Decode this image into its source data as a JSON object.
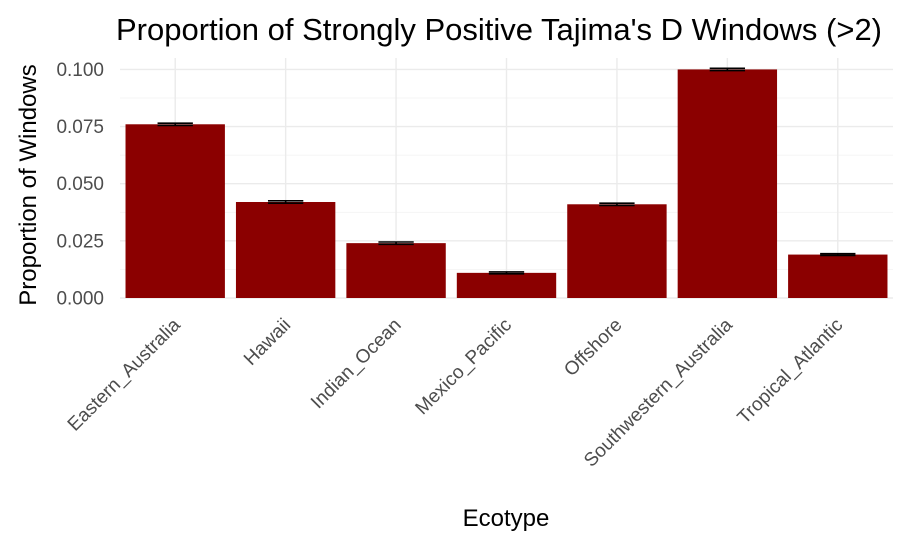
{
  "chart_data": {
    "type": "bar",
    "title": "Proportion of Strongly Positive Tajima's D Windows (>2)",
    "xlabel": "Ecotype",
    "ylabel": "Proportion of Windows",
    "categories": [
      "Eastern_Australia",
      "Hawaii",
      "Indian_Ocean",
      "Mexico_Pacific",
      "Offshore",
      "Southwestern_Australia",
      "Tropical_Atlantic"
    ],
    "values": [
      0.076,
      0.042,
      0.024,
      0.011,
      0.041,
      0.1,
      0.019
    ],
    "error": [
      0.0005,
      0.0005,
      0.0005,
      0.0004,
      0.0005,
      0.0005,
      0.0004
    ],
    "ylim": [
      0,
      0.105
    ],
    "yticks": [
      0.0,
      0.025,
      0.05,
      0.075,
      0.1
    ],
    "ytick_labels": [
      "0.000",
      "0.025",
      "0.050",
      "0.075",
      "0.100"
    ],
    "bar_color": "#8b0000",
    "grid": true,
    "legend": "none"
  }
}
